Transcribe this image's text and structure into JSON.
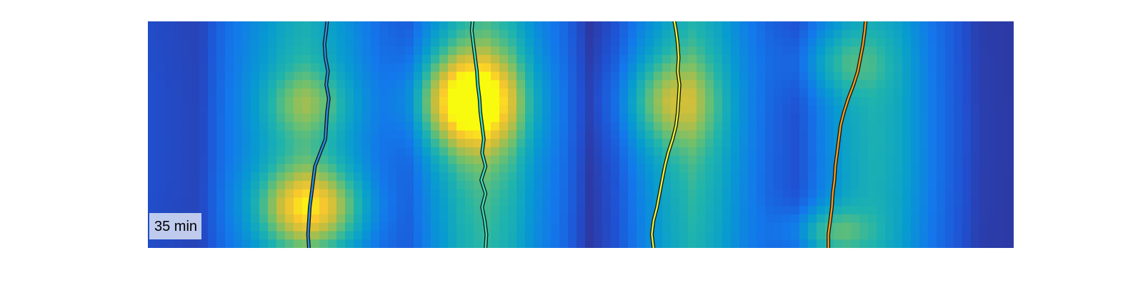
{
  "chart_data": {
    "type": "heatmap",
    "title": "",
    "xlabel": "",
    "ylabel": "",
    "annotation": "35 min",
    "colormap": "parula",
    "grid": false,
    "legend": "none",
    "x_range": [
      0,
      1
    ],
    "y_range": [
      0,
      1
    ],
    "column_profile": {
      "x": [
        0.0,
        0.03,
        0.06,
        0.09,
        0.12,
        0.15,
        0.18,
        0.21,
        0.24,
        0.27,
        0.3,
        0.33,
        0.36,
        0.39,
        0.42,
        0.45,
        0.48,
        0.51,
        0.54,
        0.57,
        0.6,
        0.63,
        0.66,
        0.69,
        0.72,
        0.75,
        0.78,
        0.81,
        0.84,
        0.87,
        0.9,
        0.93,
        0.96,
        1.0
      ],
      "intensity": [
        0.14,
        0.12,
        0.1,
        0.28,
        0.4,
        0.52,
        0.6,
        0.52,
        0.4,
        0.26,
        0.2,
        0.42,
        0.58,
        0.66,
        0.58,
        0.4,
        0.26,
        0.06,
        0.16,
        0.36,
        0.52,
        0.62,
        0.52,
        0.36,
        0.22,
        0.14,
        0.34,
        0.5,
        0.56,
        0.5,
        0.34,
        0.2,
        0.08,
        0.06
      ]
    },
    "hotspots": [
      {
        "x": 0.184,
        "y": 0.36,
        "sx": 0.035,
        "sy": 0.1,
        "amp": 0.18
      },
      {
        "x": 0.188,
        "y": 0.82,
        "sx": 0.045,
        "sy": 0.12,
        "amp": 0.42
      },
      {
        "x": 0.368,
        "y": 0.35,
        "sx": 0.045,
        "sy": 0.15,
        "amp": 0.55
      },
      {
        "x": 0.598,
        "y": 0.35,
        "sx": 0.04,
        "sy": 0.14,
        "amp": 0.3
      },
      {
        "x": 0.795,
        "y": 0.18,
        "sx": 0.04,
        "sy": 0.1,
        "amp": 0.18
      },
      {
        "x": 0.78,
        "y": 0.93,
        "sx": 0.035,
        "sy": 0.08,
        "amp": 0.3
      }
    ],
    "series": [
      {
        "color": "#2a8fe0",
        "x": [
          0.207,
          0.206,
          0.204,
          0.205,
          0.208,
          0.206,
          0.209,
          0.207,
          0.206,
          0.205,
          0.199,
          0.193,
          0.191,
          0.189,
          0.187,
          0.186,
          0.185,
          0.186
        ],
        "y": [
          0.0,
          0.04,
          0.1,
          0.16,
          0.22,
          0.28,
          0.34,
          0.4,
          0.46,
          0.52,
          0.58,
          0.64,
          0.7,
          0.76,
          0.82,
          0.88,
          0.94,
          1.0
        ]
      },
      {
        "color": "#39e0c0",
        "x": [
          0.375,
          0.374,
          0.376,
          0.378,
          0.38,
          0.381,
          0.383,
          0.384,
          0.386,
          0.388,
          0.386,
          0.39,
          0.385,
          0.39,
          0.386,
          0.389,
          0.391,
          0.39
        ],
        "y": [
          0.0,
          0.04,
          0.1,
          0.16,
          0.22,
          0.28,
          0.34,
          0.4,
          0.46,
          0.52,
          0.58,
          0.64,
          0.7,
          0.76,
          0.82,
          0.88,
          0.94,
          1.0
        ]
      },
      {
        "color": "#e8f23a",
        "x": [
          0.608,
          0.61,
          0.612,
          0.613,
          0.612,
          0.614,
          0.613,
          0.612,
          0.61,
          0.606,
          0.601,
          0.597,
          0.594,
          0.591,
          0.588,
          0.584,
          0.582,
          0.584
        ],
        "y": [
          0.0,
          0.04,
          0.1,
          0.16,
          0.22,
          0.28,
          0.34,
          0.4,
          0.46,
          0.52,
          0.58,
          0.64,
          0.7,
          0.76,
          0.82,
          0.88,
          0.94,
          1.0
        ]
      },
      {
        "color": "#f39a1e",
        "x": [
          0.829,
          0.828,
          0.826,
          0.823,
          0.82,
          0.815,
          0.809,
          0.804,
          0.8,
          0.798,
          0.796,
          0.794,
          0.793,
          0.791,
          0.79,
          0.788,
          0.786,
          0.786
        ],
        "y": [
          0.0,
          0.04,
          0.1,
          0.16,
          0.22,
          0.28,
          0.34,
          0.4,
          0.46,
          0.52,
          0.58,
          0.64,
          0.7,
          0.76,
          0.82,
          0.88,
          0.94,
          1.0
        ]
      }
    ]
  }
}
